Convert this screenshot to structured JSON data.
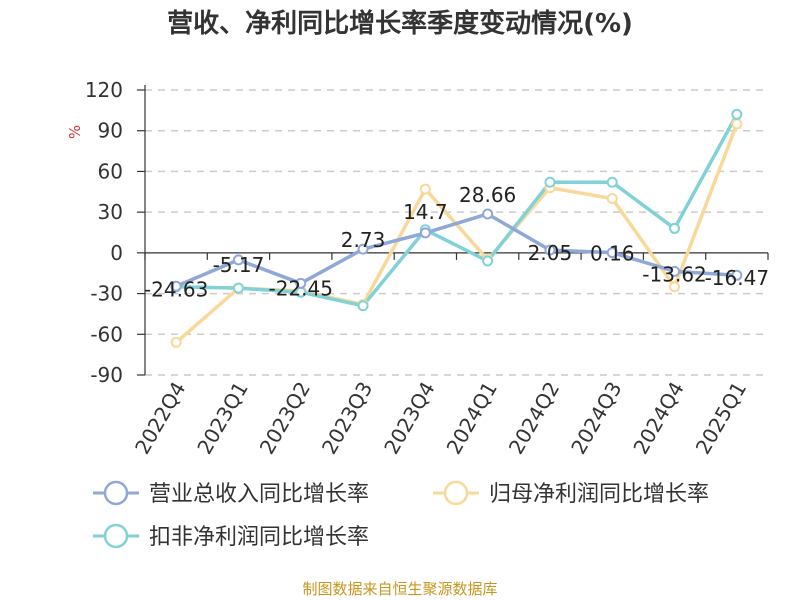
{
  "chart_data": {
    "type": "line",
    "title": "营收、净利同比增长率季度变动情况(%)",
    "ylabel": "%",
    "ylim": [
      -90,
      120
    ],
    "yticks": [
      120,
      90,
      60,
      30,
      0,
      -30,
      -60,
      -90
    ],
    "grid": true,
    "legend_position": "bottom",
    "categories": [
      "2022Q4",
      "2023Q1",
      "2023Q2",
      "2023Q3",
      "2023Q4",
      "2024Q1",
      "2024Q2",
      "2024Q3",
      "2024Q4",
      "2025Q1"
    ],
    "series": [
      {
        "name": "营业总收入同比增长率",
        "color": "#8fa8d8",
        "values": [
          -24.63,
          -5.17,
          -22.45,
          2.73,
          14.7,
          28.66,
          2.05,
          0.16,
          -13.62,
          -16.47
        ],
        "labels": [
          "-24.63",
          "-5.17",
          "-22.45",
          "2.73",
          "14.7",
          "28.66",
          "2.05",
          "0.16",
          "-13.62",
          "-16.47"
        ]
      },
      {
        "name": "归母净利润同比增长率",
        "color": "#fad89a",
        "values": [
          -66,
          -26,
          -28,
          -38,
          47,
          -5,
          48,
          40,
          -25,
          95
        ]
      },
      {
        "name": "扣非净利润同比增长率",
        "color": "#80d2d6",
        "values": [
          -25,
          -26,
          -29,
          -39,
          17,
          -6,
          52,
          52,
          18,
          102
        ]
      }
    ]
  },
  "source": "制图数据来自恒生聚源数据库"
}
